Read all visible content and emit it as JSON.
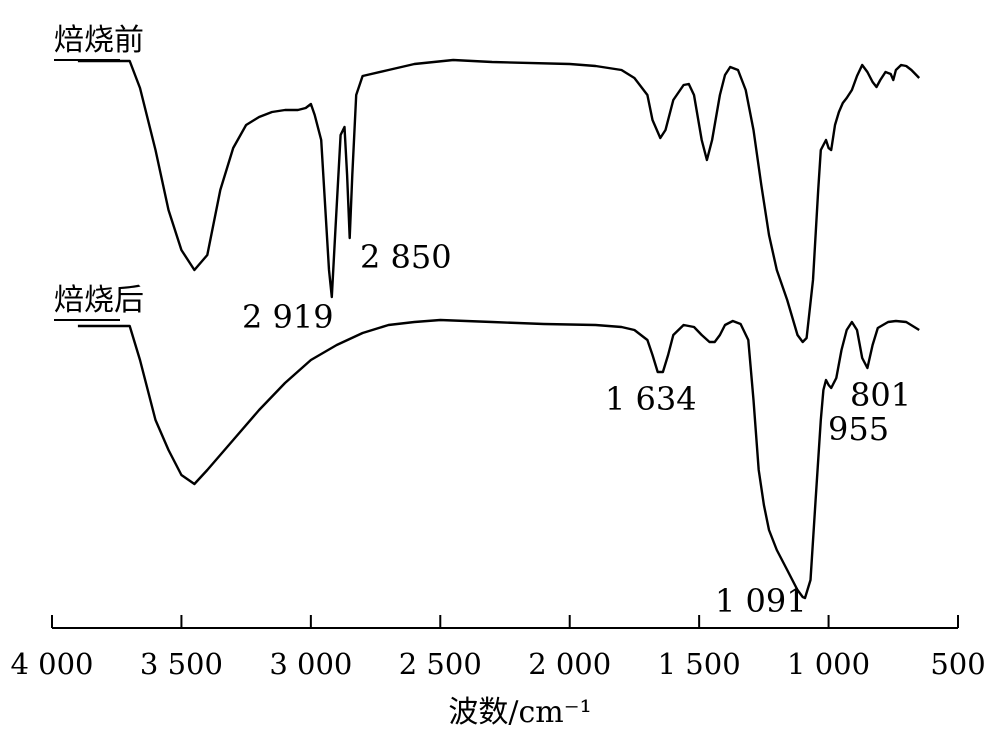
{
  "chart_data": {
    "type": "line",
    "xlabel": "波数/cm⁻¹",
    "xlim": [
      4000,
      500
    ],
    "x_reversed": true,
    "xticks": [
      4000,
      3500,
      3000,
      2500,
      2000,
      1500,
      1000,
      500
    ],
    "xtick_labels": [
      "4 000",
      "3 500",
      "3 000",
      "2 500",
      "2 000",
      "1 500",
      "1 000",
      "500"
    ],
    "y_axis_shown": false,
    "series": [
      {
        "name": "焙烧前",
        "points": [
          [
            3900,
            61
          ],
          [
            3700,
            61
          ],
          [
            3660,
            88
          ],
          [
            3600,
            150
          ],
          [
            3550,
            210
          ],
          [
            3500,
            250
          ],
          [
            3450,
            270
          ],
          [
            3400,
            255
          ],
          [
            3350,
            190
          ],
          [
            3300,
            148
          ],
          [
            3250,
            125
          ],
          [
            3200,
            117
          ],
          [
            3150,
            112
          ],
          [
            3100,
            110
          ],
          [
            3050,
            110
          ],
          [
            3020,
            108
          ],
          [
            3000,
            104
          ],
          [
            2985,
            115
          ],
          [
            2960,
            140
          ],
          [
            2930,
            270
          ],
          [
            2919,
            297
          ],
          [
            2905,
            230
          ],
          [
            2885,
            135
          ],
          [
            2870,
            127
          ],
          [
            2860,
            175
          ],
          [
            2850,
            238
          ],
          [
            2840,
            175
          ],
          [
            2825,
            95
          ],
          [
            2800,
            76
          ],
          [
            2700,
            70
          ],
          [
            2600,
            64
          ],
          [
            2450,
            60
          ],
          [
            2300,
            62
          ],
          [
            2000,
            64
          ],
          [
            1900,
            66
          ],
          [
            1800,
            70
          ],
          [
            1750,
            78
          ],
          [
            1700,
            95
          ],
          [
            1680,
            120
          ],
          [
            1650,
            138
          ],
          [
            1630,
            130
          ],
          [
            1600,
            100
          ],
          [
            1560,
            85
          ],
          [
            1540,
            84
          ],
          [
            1520,
            95
          ],
          [
            1490,
            140
          ],
          [
            1470,
            160
          ],
          [
            1450,
            140
          ],
          [
            1420,
            95
          ],
          [
            1400,
            75
          ],
          [
            1380,
            67
          ],
          [
            1350,
            70
          ],
          [
            1320,
            90
          ],
          [
            1290,
            130
          ],
          [
            1260,
            185
          ],
          [
            1230,
            235
          ],
          [
            1200,
            270
          ],
          [
            1160,
            300
          ],
          [
            1120,
            335
          ],
          [
            1100,
            342
          ],
          [
            1085,
            338
          ],
          [
            1060,
            280
          ],
          [
            1040,
            190
          ],
          [
            1030,
            150
          ],
          [
            1010,
            140
          ],
          [
            1000,
            148
          ],
          [
            990,
            150
          ],
          [
            975,
            125
          ],
          [
            960,
            112
          ],
          [
            945,
            103
          ],
          [
            930,
            98
          ],
          [
            910,
            90
          ],
          [
            890,
            76
          ],
          [
            870,
            65
          ],
          [
            850,
            72
          ],
          [
            830,
            82
          ],
          [
            815,
            87
          ],
          [
            800,
            80
          ],
          [
            780,
            72
          ],
          [
            760,
            74
          ],
          [
            750,
            80
          ],
          [
            740,
            70
          ],
          [
            720,
            65
          ],
          [
            700,
            66
          ],
          [
            680,
            70
          ],
          [
            650,
            78
          ]
        ]
      },
      {
        "name": "焙烧后",
        "points": [
          [
            3900,
            326
          ],
          [
            3700,
            326
          ],
          [
            3660,
            360
          ],
          [
            3600,
            420
          ],
          [
            3550,
            450
          ],
          [
            3500,
            475
          ],
          [
            3450,
            484
          ],
          [
            3400,
            470
          ],
          [
            3300,
            440
          ],
          [
            3200,
            410
          ],
          [
            3100,
            383
          ],
          [
            3000,
            360
          ],
          [
            2900,
            345
          ],
          [
            2800,
            333
          ],
          [
            2700,
            325
          ],
          [
            2600,
            322
          ],
          [
            2500,
            320
          ],
          [
            2300,
            322
          ],
          [
            2100,
            324
          ],
          [
            1900,
            325
          ],
          [
            1800,
            327
          ],
          [
            1750,
            330
          ],
          [
            1700,
            340
          ],
          [
            1680,
            355
          ],
          [
            1660,
            372
          ],
          [
            1640,
            372
          ],
          [
            1620,
            355
          ],
          [
            1600,
            335
          ],
          [
            1560,
            325
          ],
          [
            1520,
            327
          ],
          [
            1490,
            335
          ],
          [
            1460,
            342
          ],
          [
            1440,
            342
          ],
          [
            1420,
            335
          ],
          [
            1400,
            325
          ],
          [
            1370,
            321
          ],
          [
            1340,
            324
          ],
          [
            1310,
            340
          ],
          [
            1290,
            400
          ],
          [
            1270,
            470
          ],
          [
            1250,
            505
          ],
          [
            1230,
            530
          ],
          [
            1200,
            550
          ],
          [
            1160,
            570
          ],
          [
            1120,
            590
          ],
          [
            1100,
            597
          ],
          [
            1091,
            598
          ],
          [
            1070,
            580
          ],
          [
            1050,
            500
          ],
          [
            1030,
            420
          ],
          [
            1020,
            390
          ],
          [
            1010,
            380
          ],
          [
            1000,
            385
          ],
          [
            990,
            388
          ],
          [
            970,
            378
          ],
          [
            950,
            350
          ],
          [
            930,
            330
          ],
          [
            910,
            322
          ],
          [
            890,
            330
          ],
          [
            870,
            358
          ],
          [
            850,
            368
          ],
          [
            830,
            345
          ],
          [
            810,
            328
          ],
          [
            790,
            325
          ],
          [
            770,
            322
          ],
          [
            740,
            321
          ],
          [
            700,
            322
          ],
          [
            650,
            330
          ]
        ]
      }
    ],
    "annotations": [
      {
        "text": "2 919",
        "series": "焙烧前",
        "x": 2919
      },
      {
        "text": "2 850",
        "series": "焙烧前",
        "x": 2850
      },
      {
        "text": "1 634",
        "series": "焙烧后",
        "x": 1634
      },
      {
        "text": "1 091",
        "series": "焙烧后",
        "x": 1091
      },
      {
        "text": "955",
        "series": "焙烧后",
        "x": 955
      },
      {
        "text": "801",
        "series": "焙烧后",
        "x": 801
      }
    ]
  }
}
